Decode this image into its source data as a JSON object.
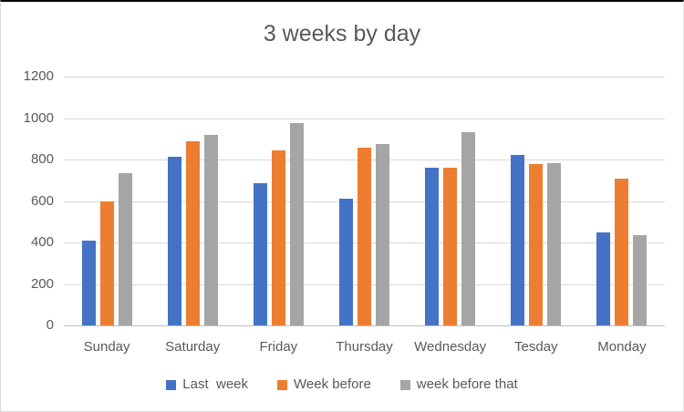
{
  "chart_data": {
    "type": "bar",
    "title": "3 weeks by day",
    "categories": [
      "Sunday",
      "Saturday",
      "Friday",
      "Thursday",
      "Wednesday",
      "Tesday",
      "Monday"
    ],
    "series": [
      {
        "name": "Last  week",
        "color": "#4472C4",
        "values": [
          410,
          812,
          684,
          612,
          760,
          824,
          448
        ]
      },
      {
        "name": "Week before",
        "color": "#ED7D31",
        "values": [
          598,
          886,
          842,
          856,
          760,
          778,
          710
        ]
      },
      {
        "name": "week before that",
        "color": "#A5A5A5",
        "values": [
          735,
          918,
          975,
          874,
          930,
          782,
          436
        ]
      }
    ],
    "ylim": [
      0,
      1200
    ],
    "y_ticks": [
      0,
      200,
      400,
      600,
      800,
      1000,
      1200
    ],
    "grid": true,
    "legend_position": "bottom"
  },
  "colors": {
    "background": "#FFFFFF",
    "text": "#595959",
    "gridline": "#D9D9D9",
    "axis_line": "#BFBFBF",
    "top_border": "#000000",
    "series_blue": "#4472C4",
    "series_orange": "#ED7D31",
    "series_gray": "#A5A5A5"
  }
}
